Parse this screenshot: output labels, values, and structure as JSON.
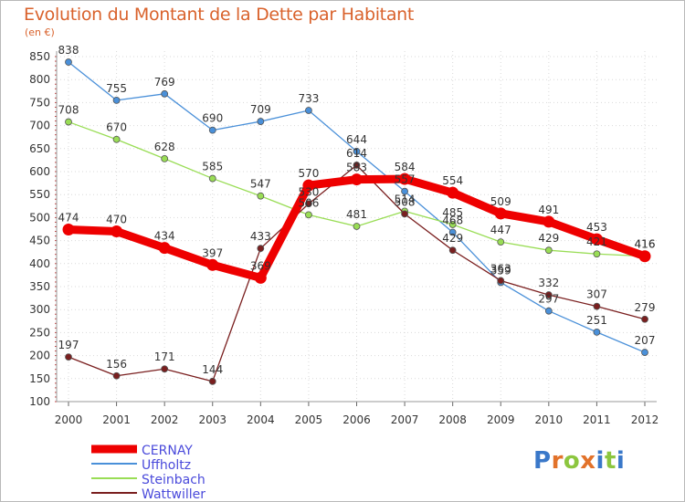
{
  "header": {
    "title": "Evolution du Montant de la Dette par Habitant",
    "subtitle": "(en €)"
  },
  "logo": {
    "text": "Proxiti",
    "colors": [
      "#3a78c9",
      "#e2722a",
      "#8cc63f",
      "#e2722a",
      "#3a78c9",
      "#8cc63f",
      "#3a78c9"
    ]
  },
  "colors": {
    "title": "#d9622c",
    "axis_text": "#333333",
    "grid": "#d9d9d9",
    "legend_text": "#4a4adb"
  },
  "chart_data": {
    "type": "line",
    "title": "Evolution du Montant de la Dette par Habitant",
    "ylabel": "(en €)",
    "xlabel": "",
    "ylim": [
      100,
      850
    ],
    "yticks": [
      100,
      150,
      200,
      250,
      300,
      350,
      400,
      450,
      500,
      550,
      600,
      650,
      700,
      750,
      800,
      850
    ],
    "x": [
      "2000",
      "2001",
      "2002",
      "2003",
      "2004",
      "2005",
      "2006",
      "2007",
      "2008",
      "2009",
      "2010",
      "2011",
      "2012"
    ],
    "grid": true,
    "legend_position": "bottom-left",
    "series": [
      {
        "name": "CERNAY",
        "color": "#ee0000",
        "thick": true,
        "values": [
          474,
          470,
          434,
          397,
          369,
          570,
          583,
          584,
          554,
          509,
          491,
          453,
          416
        ]
      },
      {
        "name": "Uffholtz",
        "color": "#4a90d9",
        "thick": false,
        "values": [
          838,
          755,
          769,
          690,
          709,
          733,
          644,
          557,
          468,
          359,
          297,
          251,
          207
        ]
      },
      {
        "name": "Steinbach",
        "color": "#99dd55",
        "thick": false,
        "values": [
          708,
          670,
          628,
          585,
          547,
          506,
          481,
          514,
          485,
          447,
          429,
          421,
          416
        ]
      },
      {
        "name": "Wattwiller",
        "color": "#7a1f1f",
        "thick": false,
        "values": [
          197,
          156,
          171,
          144,
          433,
          530,
          614,
          508,
          429,
          363,
          332,
          307,
          279
        ]
      }
    ]
  }
}
